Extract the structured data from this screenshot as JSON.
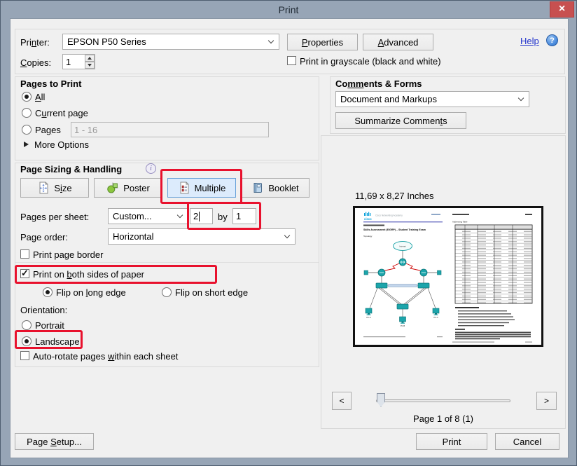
{
  "window": {
    "title": "Print"
  },
  "printer": {
    "label": {
      "label": "Printer:",
      "mnemonic": "n"
    },
    "value": "EPSON P50 Series",
    "properties": {
      "label": "Properties",
      "mnemonic": "P"
    },
    "advanced": {
      "label": "Advanced",
      "mnemonic": "A"
    },
    "help": "Help",
    "copies_label": {
      "label": "Copies:",
      "mnemonic": "C"
    },
    "copies_value": "1",
    "grayscale_label": "Print in grayscale (black and white)"
  },
  "pages_to_print": {
    "heading": "Pages to Print",
    "all": {
      "label": "All",
      "mnemonic": "A"
    },
    "current": {
      "label": "Current page",
      "mnemonic": "u"
    },
    "pages": {
      "label": "Pages",
      "mnemonic": "g"
    },
    "range": "1 - 16",
    "more_options": "More Options"
  },
  "sizing": {
    "heading": "Page Sizing & Handling",
    "size": {
      "label": "Size",
      "mnemonic": "i"
    },
    "poster": "Poster",
    "multiple": "Multiple",
    "booklet": "Booklet",
    "pages_per_sheet_label": "Pages per sheet:",
    "pages_per_sheet_value": "Custom...",
    "cols": "2",
    "by": "by",
    "rows": "1",
    "page_order_label": "Page order:",
    "page_order_value": "Horizontal",
    "page_border_label": "Print page border",
    "both_sides": {
      "label": "Print on both sides of paper",
      "mnemonic": "b"
    },
    "flip_long": {
      "label": "Flip on long edge",
      "mnemonic": "long",
      "m_len": 1
    },
    "flip_short": "Flip on short edge",
    "orientation_label": "Orientation:",
    "portrait": "Portrait",
    "landscape": "Landscape",
    "auto_rotate": {
      "label": "Auto-rotate pages within each sheet",
      "mnemonic": "w"
    }
  },
  "comments": {
    "heading": {
      "label": "Comments & Forms",
      "mnemonic": "mm"
    },
    "value": "Document and Markups",
    "summarize": {
      "label": "Summarize Comments",
      "mnemonic": "t"
    }
  },
  "preview": {
    "size_text": "11,69 x 8,27 Inches",
    "page_status": "Page 1 of 8 (1)",
    "prev": "<",
    "next": ">",
    "doc": {
      "brand": "cisco",
      "academy": "Cisco Networking Academy",
      "title": "Skills Assessment (EIGRP) – Student Training Exam",
      "topology": "Topology",
      "internet": "Internet",
      "addressing": "Addressing Table",
      "pc_a": "PC-A",
      "pc_b": "PC-B",
      "pc_c": "PC-C"
    }
  },
  "footer": {
    "page_setup": {
      "label": "Page Setup...",
      "mnemonic": "S"
    },
    "print": "Print",
    "cancel": "Cancel"
  },
  "colors": {
    "titlebar": "#97A5B6",
    "close_button": "#C75050",
    "annotation_red": "#E8112D",
    "selected_mode_bg": "#DCEBFC",
    "dialog_bg": "#F0F0F0",
    "device_teal": "#1CA5AB"
  }
}
